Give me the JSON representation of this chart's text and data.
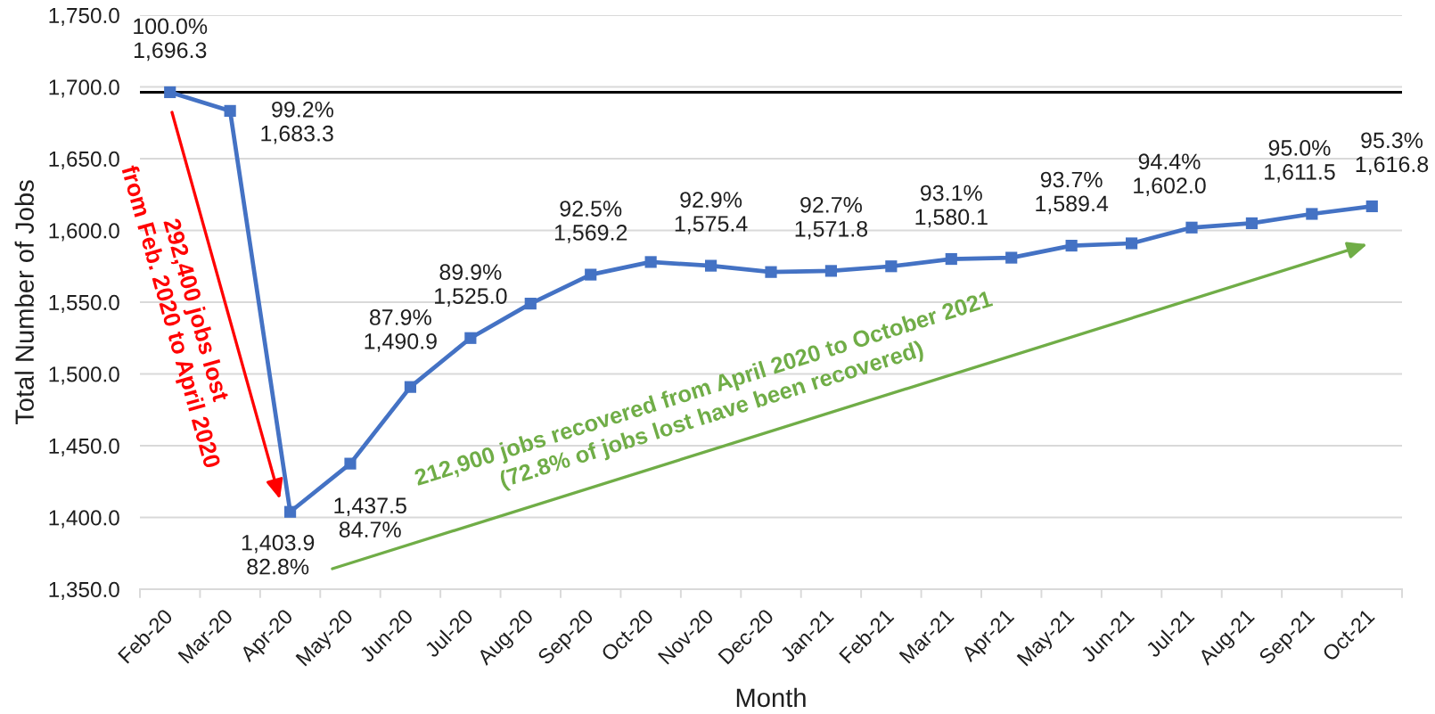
{
  "chart_data": {
    "type": "line",
    "xlabel": "Month",
    "ylabel": "Total Number of Jobs",
    "categories": [
      "Feb-20",
      "Mar-20",
      "Apr-20",
      "May-20",
      "Jun-20",
      "Jul-20",
      "Aug-20",
      "Sep-20",
      "Oct-20",
      "Nov-20",
      "Dec-20",
      "Jan-21",
      "Feb-21",
      "Mar-21",
      "Apr-21",
      "May-21",
      "Jun-21",
      "Jul-21",
      "Aug-21",
      "Sep-21",
      "Oct-21"
    ],
    "series": [
      {
        "color": "#4472c4",
        "values": [
          1696.3,
          1683.3,
          1403.9,
          1437.5,
          1490.9,
          1525.0,
          1549,
          1569.2,
          1578,
          1575.4,
          1571,
          1571.8,
          1575,
          1580.1,
          1581,
          1589.4,
          1591,
          1602.0,
          1605,
          1611.5,
          1616.8
        ],
        "value_labels": [
          "100.0%\n1,696.3",
          "99.2%\n1,683.3",
          "1,403.9\n82.8%",
          "1,437.5\n84.7%",
          "87.9%\n1,490.9",
          "89.9%\n1,525.0",
          null,
          "92.5%\n1,569.2",
          null,
          "92.9%\n1,575.4",
          null,
          "92.7%\n1,571.8",
          null,
          "93.1%\n1,580.1",
          null,
          "93.7%\n1,589.4",
          null,
          "94.4%\n1,602.0",
          null,
          "95.0%\n1,611.5",
          "95.3%\n1,616.8"
        ]
      }
    ],
    "marker": "square",
    "line_style": "solid",
    "ylim": [
      1350,
      1750
    ],
    "yticks": [
      {
        "value": 1350,
        "label": "1,350.0"
      },
      {
        "value": 1400,
        "label": "1,400.0"
      },
      {
        "value": 1450,
        "label": "1,450.0"
      },
      {
        "value": 1500,
        "label": "1,500.0"
      },
      {
        "value": 1550,
        "label": "1,550.0"
      },
      {
        "value": 1600,
        "label": "1,600.0"
      },
      {
        "value": 1650,
        "label": "1,650.0"
      },
      {
        "value": 1700,
        "label": "1,700.0"
      },
      {
        "value": 1750,
        "label": "1,750.0"
      }
    ],
    "grid": "y",
    "ref_lines": [
      {
        "axis": "y",
        "value": 1696.3,
        "color": "#000000"
      }
    ],
    "annotations": [
      "292,400 jobs lost\nfrom Feb. 2020 to April 2020",
      "212,900 jobs recovered from April 2020 to October 2021\n(72.8% of jobs lost have been recovered)"
    ]
  }
}
